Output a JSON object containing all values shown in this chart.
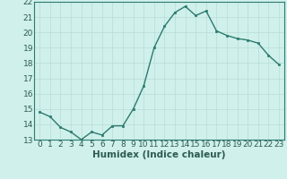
{
  "x": [
    0,
    1,
    2,
    3,
    4,
    5,
    6,
    7,
    8,
    9,
    10,
    11,
    12,
    13,
    14,
    15,
    16,
    17,
    18,
    19,
    20,
    21,
    22,
    23
  ],
  "y": [
    14.8,
    14.5,
    13.8,
    13.5,
    13.0,
    13.5,
    13.3,
    13.9,
    13.9,
    15.0,
    16.5,
    19.0,
    20.4,
    21.3,
    21.7,
    21.1,
    21.4,
    20.1,
    19.8,
    19.6,
    19.5,
    19.3,
    18.5,
    17.9
  ],
  "xlabel": "Humidex (Indice chaleur)",
  "xlim": [
    -0.5,
    23.5
  ],
  "ylim": [
    13,
    22
  ],
  "yticks": [
    13,
    14,
    15,
    16,
    17,
    18,
    19,
    20,
    21,
    22
  ],
  "xticks": [
    0,
    1,
    2,
    3,
    4,
    5,
    6,
    7,
    8,
    9,
    10,
    11,
    12,
    13,
    14,
    15,
    16,
    17,
    18,
    19,
    20,
    21,
    22,
    23
  ],
  "line_color": "#2d7a6e",
  "marker_color": "#2d7a6e",
  "bg_color": "#cff0eb",
  "grid_color": "#b8ddd8",
  "tick_label_fontsize": 6.5,
  "xlabel_fontsize": 7.5,
  "line_width": 1.0,
  "marker_size": 2.0
}
